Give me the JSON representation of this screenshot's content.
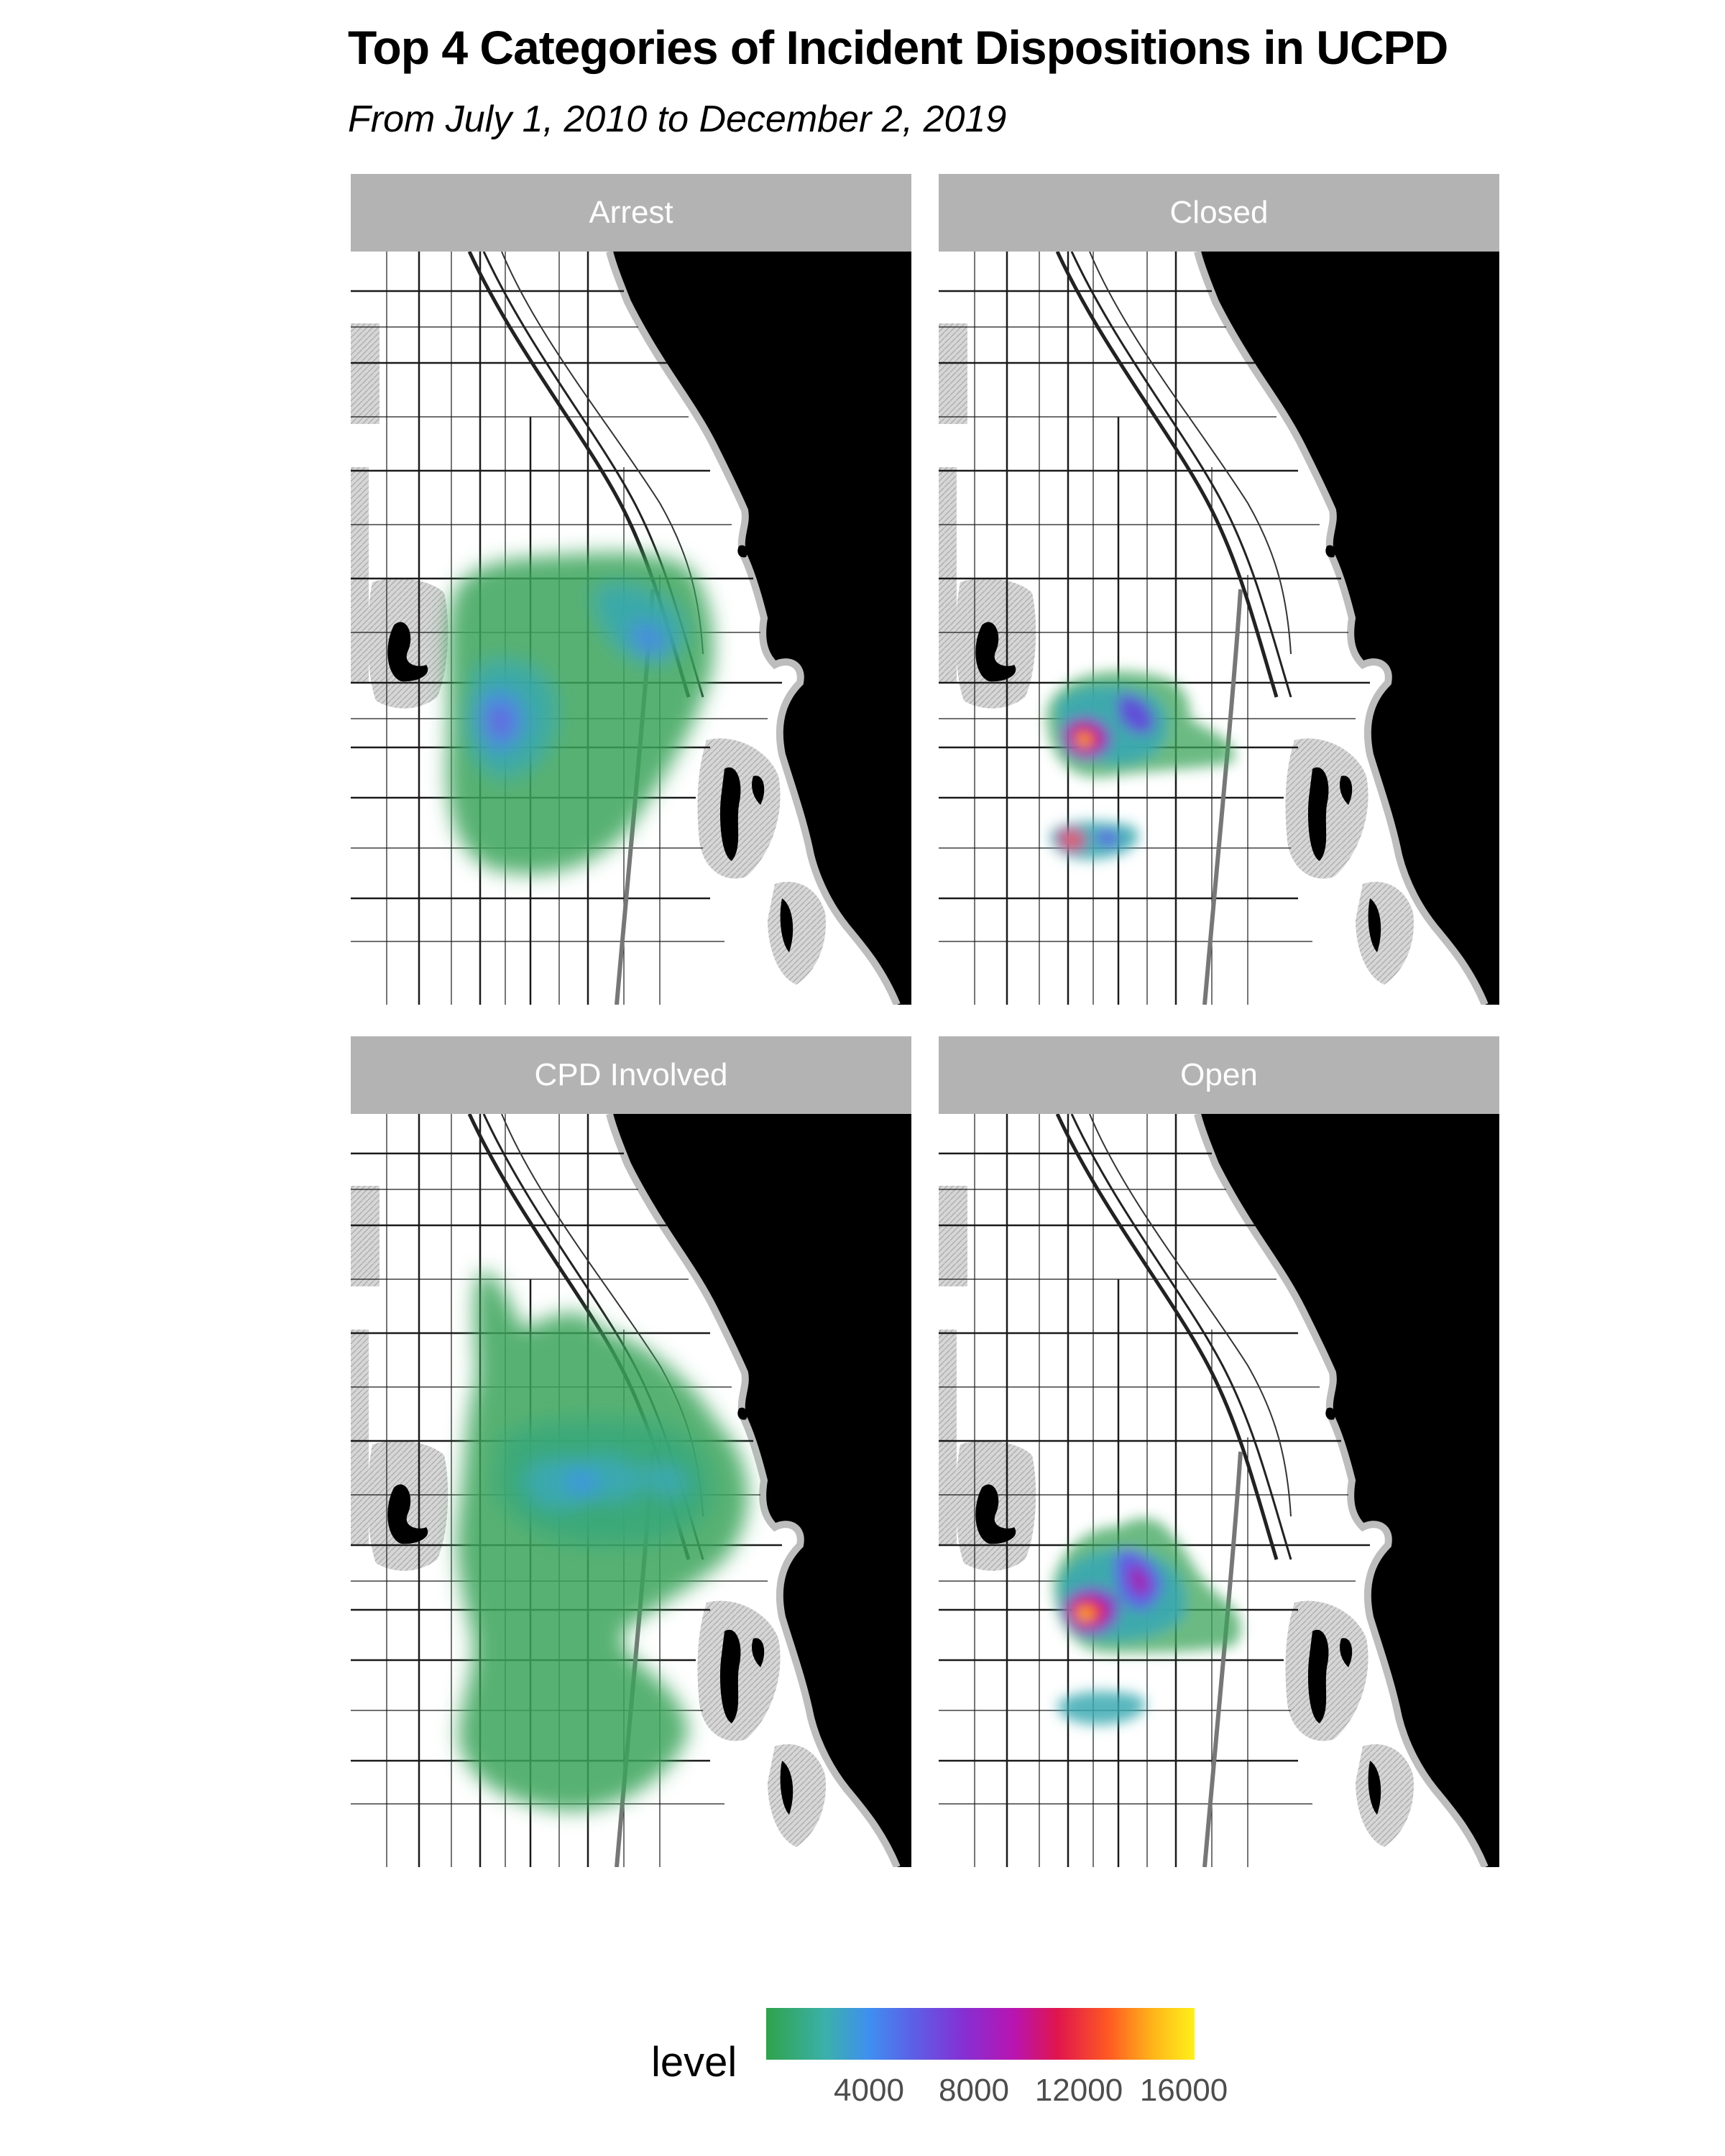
{
  "title": "Top 4 Categories of Incident Dispositions in UCPD",
  "subtitle": "From July 1, 2010 to December 2, 2019",
  "panels": [
    {
      "label": "Arrest"
    },
    {
      "label": "Closed"
    },
    {
      "label": "CPD Involved"
    },
    {
      "label": "Open"
    }
  ],
  "legend": {
    "title": "level",
    "ticks": [
      "4000",
      "8000",
      "12000",
      "16000"
    ],
    "colors": [
      "#2fa34a",
      "#3bb0ab",
      "#3f8ff0",
      "#8530d3",
      "#e0154e",
      "#ff5a22",
      "#fff01a"
    ]
  },
  "map_colors": {
    "water": "#000000",
    "land": "#ffffff",
    "parks": "#d4d4d4",
    "strip": "#b3b3b3"
  }
}
